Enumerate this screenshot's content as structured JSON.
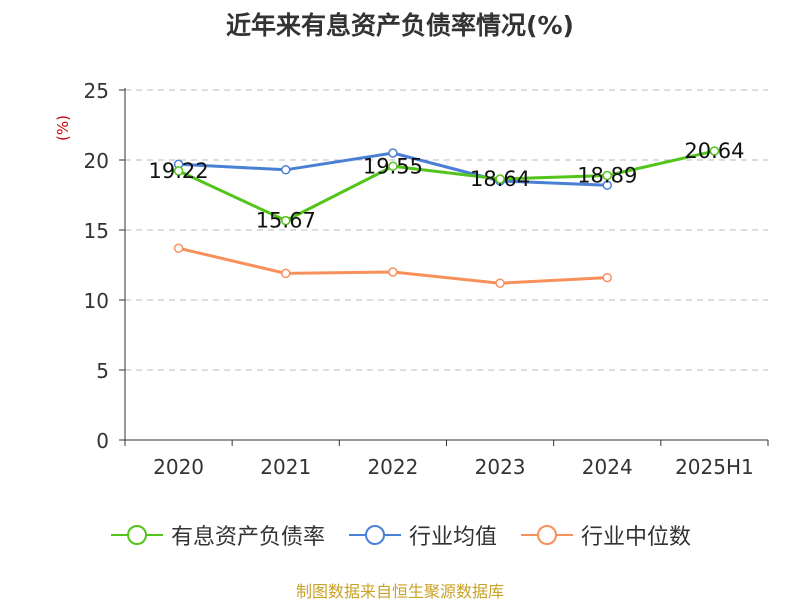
{
  "title": "近年来有息资产负债率情况(%)",
  "source": "制图数据来自恒生聚源数据库",
  "chart_data": {
    "type": "line",
    "title": "近年来有息资产负债率情况(%)",
    "ylabel": "(%)",
    "xlabel": "",
    "categories": [
      "2020",
      "2021",
      "2022",
      "2023",
      "2024",
      "2025H1"
    ],
    "ylim": [
      0,
      25
    ],
    "yticks": [
      0,
      5,
      10,
      15,
      20,
      25
    ],
    "grid": true,
    "legend_position": "bottom",
    "series": [
      {
        "name": "有息资产负债率",
        "color": "#52c41a",
        "values": [
          19.22,
          15.67,
          19.55,
          18.64,
          18.89,
          20.64
        ],
        "labels": [
          "19.22",
          "15.67",
          "19.55",
          "18.64",
          "18.89",
          "20.64"
        ]
      },
      {
        "name": "行业均值",
        "color": "#4a7fd6",
        "values": [
          19.7,
          19.3,
          20.5,
          18.5,
          18.2,
          null
        ]
      },
      {
        "name": "行业中位数",
        "color": "#f7905a",
        "values": [
          13.7,
          11.9,
          12.0,
          11.2,
          11.6,
          null
        ]
      }
    ]
  }
}
